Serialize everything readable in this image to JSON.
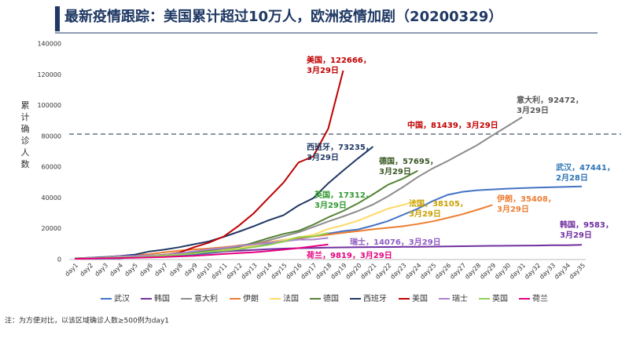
{
  "chart_data": {
    "type": "line",
    "title": "最新疫情跟踪：美国累计超过10万人，欧洲疫情加剧（20200329）",
    "y_label": "累计确诊人数",
    "note": "注：为方便对比，以该区域确诊人数≥500例为day1",
    "categories": [
      "day1",
      "day2",
      "day3",
      "day4",
      "day5",
      "day6",
      "day7",
      "day8",
      "day9",
      "day10",
      "day11",
      "day12",
      "day13",
      "day14",
      "day15",
      "day16",
      "day17",
      "day18",
      "day19",
      "day20",
      "day21",
      "day22",
      "day23",
      "day24",
      "day25",
      "day26",
      "day27",
      "day28",
      "day29",
      "day30",
      "day31",
      "day32",
      "day33",
      "day34",
      "day35"
    ],
    "ylim": [
      0,
      140000
    ],
    "yticks": [
      0,
      20000,
      40000,
      60000,
      80000,
      100000,
      120000,
      140000
    ],
    "reference_line": 81439,
    "series": [
      {
        "name": "武汉",
        "color": "#4472c4",
        "values": [
          495,
          572,
          618,
          698,
          1590,
          1905,
          2261,
          2639,
          3215,
          4109,
          5142,
          6384,
          8351,
          10117,
          11618,
          13603,
          14982,
          16902,
          18454,
          19558,
          22112,
          25000,
          29000,
          33000,
          38000,
          42000,
          44000,
          45000,
          45500,
          46000,
          46400,
          46700,
          47000,
          47200,
          47441
        ]
      },
      {
        "name": "韩国",
        "color": "#7030a0",
        "values": [
          602,
          763,
          977,
          1261,
          1766,
          2337,
          3150,
          3736,
          4212,
          4812,
          5328,
          5766,
          6284,
          6767,
          7134,
          7382,
          7513,
          7755,
          7869,
          7979,
          8086,
          8162,
          8236,
          8320,
          8413,
          8565,
          8652,
          8799,
          8897,
          8961,
          9037,
          9137,
          9241,
          9332,
          9583
        ]
      },
      {
        "name": "意大利",
        "color": "#8c8c8c",
        "values": [
          655,
          888,
          1128,
          1694,
          2036,
          2502,
          3089,
          3858,
          4636,
          5883,
          7375,
          9172,
          10149,
          12462,
          15113,
          17660,
          21157,
          24747,
          27980,
          31506,
          35713,
          41035,
          47021,
          53578,
          59138,
          63927,
          69176,
          74386,
          80589,
          86498,
          92472,
          null,
          null,
          null,
          null
        ]
      },
      {
        "name": "伊朗",
        "color": "#ed7d31",
        "values": [
          593,
          978,
          1501,
          2336,
          2922,
          3513,
          4747,
          5823,
          6566,
          7161,
          8042,
          9000,
          10075,
          11364,
          12729,
          13938,
          14991,
          16169,
          17361,
          18407,
          19644,
          20610,
          21638,
          23049,
          24811,
          27017,
          29406,
          32332,
          35408,
          null,
          null,
          null,
          null,
          null,
          null
        ]
      },
      {
        "name": "法国",
        "color": "#ffd966",
        "values": [
          613,
          716,
          1126,
          1412,
          1784,
          2281,
          2876,
          3661,
          4499,
          5423,
          6633,
          7730,
          9134,
          10995,
          12612,
          14459,
          16018,
          19856,
          22302,
          25233,
          29155,
          32964,
          35500,
          38105,
          null,
          null,
          null,
          null,
          null,
          null,
          null,
          null,
          null,
          null,
          null
        ]
      },
      {
        "name": "德国",
        "color": "#548235",
        "values": [
          795,
          1112,
          1139,
          1296,
          1567,
          2369,
          3062,
          3795,
          4838,
          6012,
          7156,
          8198,
          10999,
          13957,
          16662,
          18610,
          22672,
          27436,
          31554,
          36508,
          42288,
          48582,
          52547,
          57695,
          null,
          null,
          null,
          null,
          null,
          null,
          null,
          null,
          null,
          null,
          null
        ]
      },
      {
        "name": "西班牙",
        "color": "#203864",
        "values": [
          674,
          1231,
          1695,
          2277,
          3146,
          5232,
          6391,
          7988,
          9942,
          11826,
          14769,
          18077,
          21571,
          25496,
          28768,
          35136,
          39885,
          49515,
          57786,
          65719,
          73235,
          null,
          null,
          null,
          null,
          null,
          null,
          null,
          null,
          null,
          null,
          null,
          null,
          null,
          null
        ]
      },
      {
        "name": "美国",
        "color": "#c00000",
        "values": [
          541,
          704,
          994,
          1301,
          1697,
          2247,
          3000,
          4500,
          8000,
          11000,
          15000,
          22000,
          30000,
          40000,
          50000,
          63000,
          67000,
          85000,
          122666,
          null,
          null,
          null,
          null,
          null,
          null,
          null,
          null,
          null,
          null,
          null,
          null,
          null,
          null,
          null,
          null
        ]
      },
      {
        "name": "瑞士",
        "color": "#a884d0",
        "values": [
          652,
          1139,
          1359,
          2200,
          2330,
          2650,
          3028,
          4075,
          5294,
          6575,
          7474,
          8795,
          9877,
          10897,
          11811,
          12928,
          13000,
          14076,
          null,
          null,
          null,
          null,
          null,
          null,
          null,
          null,
          null,
          null,
          null,
          null,
          null,
          null,
          null,
          null,
          null
        ]
      },
      {
        "name": "英国",
        "color": "#92d050",
        "values": [
          590,
          798,
          1140,
          1391,
          1543,
          1950,
          2626,
          3269,
          3983,
          5018,
          5683,
          6650,
          8077,
          9529,
          11658,
          14543,
          15000,
          17312,
          null,
          null,
          null,
          null,
          null,
          null,
          null,
          null,
          null,
          null,
          null,
          null,
          null,
          null,
          null,
          null,
          null
        ]
      },
      {
        "name": "荷兰",
        "color": "#e6007e",
        "values": [
          503,
          614,
          804,
          959,
          1135,
          1413,
          1705,
          2051,
          2460,
          2994,
          3631,
          4204,
          4749,
          5560,
          6412,
          7431,
          8603,
          9819,
          null,
          null,
          null,
          null,
          null,
          null,
          null,
          null,
          null,
          null,
          null,
          null,
          null,
          null,
          null,
          null,
          null
        ]
      }
    ],
    "annotations": [
      {
        "lines": [
          "美国，122666，",
          "3月29日"
        ],
        "color": "#c00000"
      },
      {
        "lines": [
          "意大利，92472，",
          "3月29日"
        ],
        "color": "#595959"
      },
      {
        "lines": [
          "中国，81439，3月29日"
        ],
        "color": "#c00000"
      },
      {
        "lines": [
          "西班牙，73235，",
          "3月29日"
        ],
        "color": "#203864"
      },
      {
        "lines": [
          "德国，57695，",
          "3月29日"
        ],
        "color": "#385723"
      },
      {
        "lines": [
          "武汉，47441，",
          "2月28日"
        ],
        "color": "#2e75b6"
      },
      {
        "lines": [
          "英国，17312，",
          "3月29日"
        ],
        "color": "#339933"
      },
      {
        "lines": [
          "法国，38105，",
          "3月29日"
        ],
        "color": "#c9a000"
      },
      {
        "lines": [
          "伊朗，35408，",
          "3月29日"
        ],
        "color": "#ed7d31"
      },
      {
        "lines": [
          "韩国，9583，",
          "3月29日"
        ],
        "color": "#7030a0"
      },
      {
        "lines": [
          "瑞士，14076，3月29日"
        ],
        "color": "#8e5bc4"
      },
      {
        "lines": [
          "荷兰，9819，3月29日"
        ],
        "color": "#e6007e"
      }
    ]
  }
}
